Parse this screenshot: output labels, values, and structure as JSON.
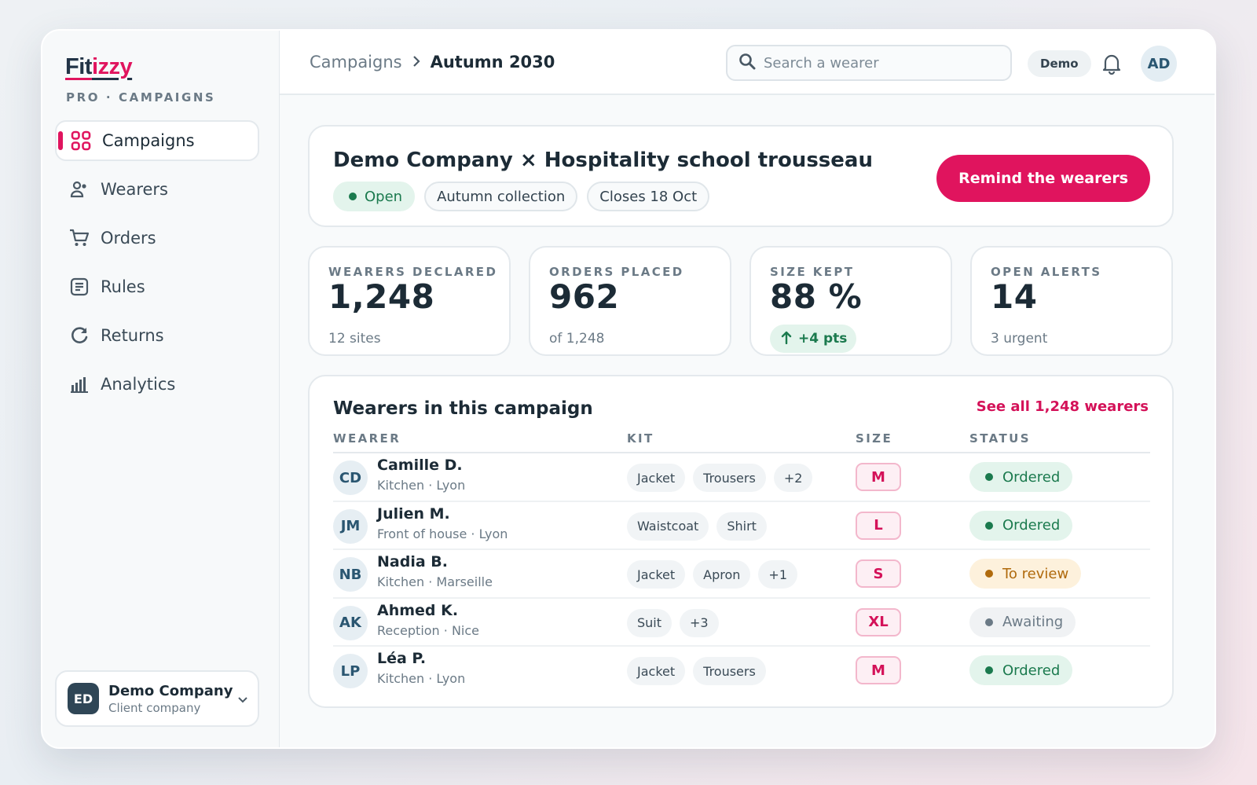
{
  "sidebar": {
    "logo_part1": "Fit",
    "logo_part2": "izzy",
    "subtitle": "PRO · CAMPAIGNS",
    "items": [
      {
        "label": "Campaigns",
        "icon": "grid-icon"
      },
      {
        "label": "Wearers",
        "icon": "users-icon"
      },
      {
        "label": "Orders",
        "icon": "cart-icon"
      },
      {
        "label": "Rules",
        "icon": "document-icon"
      },
      {
        "label": "Returns",
        "icon": "refresh-icon"
      },
      {
        "label": "Analytics",
        "icon": "bar-chart-icon"
      }
    ],
    "company": {
      "initials": "ED",
      "name": "Demo Company",
      "role": "Client company"
    }
  },
  "topbar": {
    "breadcrumb_parent": "Campaigns",
    "breadcrumb_current": "Autumn 2030",
    "search_placeholder": "Search a wearer",
    "demo_label": "Demo",
    "user_initials": "AD"
  },
  "campaign": {
    "title": "Demo Company × Hospitality school trousseau",
    "status": "Open",
    "collection": "Autumn collection",
    "closing": "Closes 18 Oct",
    "action_label": "Remind the wearers"
  },
  "stats": [
    {
      "label": "WEARERS DECLARED",
      "value": "1,248",
      "sub": "12 sites"
    },
    {
      "label": "ORDERS PLACED",
      "value": "962",
      "sub": "of 1,248"
    },
    {
      "label": "SIZE KEPT",
      "value": "88 %",
      "trend": "+4 pts"
    },
    {
      "label": "OPEN ALERTS",
      "value": "14",
      "sub": "3 urgent"
    }
  ],
  "table": {
    "title": "Wearers in this campaign",
    "see_all": "See all 1,248 wearers",
    "columns": [
      "WEARER",
      "KIT",
      "SIZE",
      "STATUS"
    ],
    "rows": [
      {
        "initials": "CD",
        "name": "Camille D.",
        "meta": "Kitchen · Lyon",
        "kit": [
          "Jacket",
          "Trousers",
          "+2"
        ],
        "size": "M",
        "status": "Ordered"
      },
      {
        "initials": "JM",
        "name": "Julien M.",
        "meta": "Front of house · Lyon",
        "kit": [
          "Waistcoat",
          "Shirt"
        ],
        "size": "L",
        "status": "Ordered"
      },
      {
        "initials": "NB",
        "name": "Nadia B.",
        "meta": "Kitchen · Marseille",
        "kit": [
          "Jacket",
          "Apron",
          "+1"
        ],
        "size": "S",
        "status": "To review"
      },
      {
        "initials": "AK",
        "name": "Ahmed K.",
        "meta": "Reception · Nice",
        "kit": [
          "Suit",
          "+3"
        ],
        "size": "XL",
        "status": "Awaiting"
      },
      {
        "initials": "LP",
        "name": "Léa P.",
        "meta": "Kitchen · Lyon",
        "kit": [
          "Jacket",
          "Trousers"
        ],
        "size": "M",
        "status": "Ordered"
      }
    ]
  },
  "colors": {
    "accent": "#e0145e",
    "ordered_bg": "#e3f4ec",
    "ordered_fg": "#1b7a4e",
    "review_bg": "#fdf1dc",
    "review_fg": "#b06a0c",
    "awaiting_bg": "#f0f2f4",
    "awaiting_fg": "#6b7a86"
  }
}
